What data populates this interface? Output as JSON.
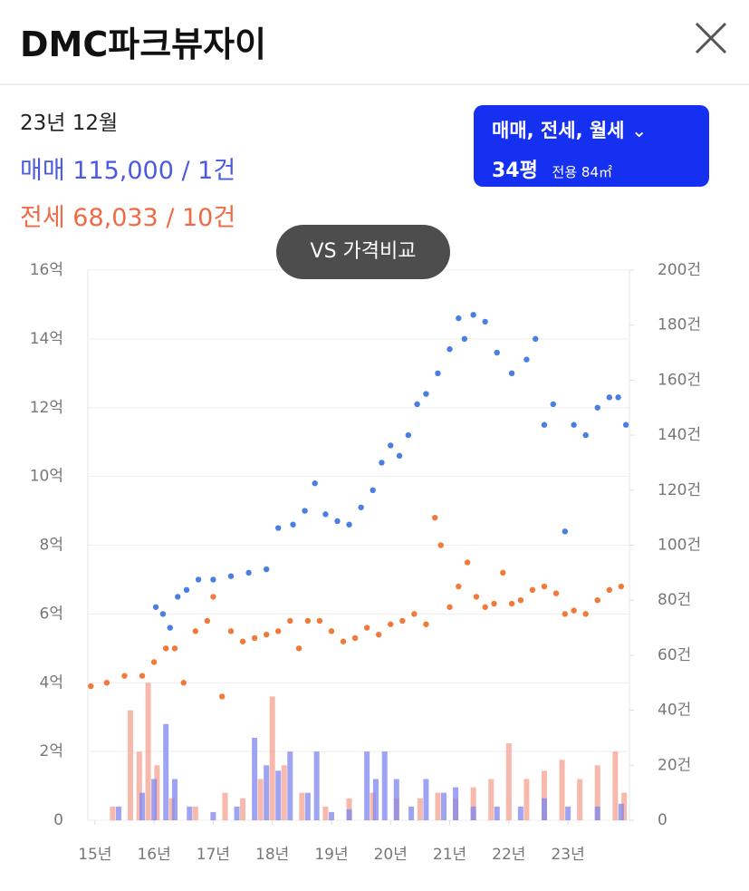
{
  "header": {
    "title": "DMC파크뷰자이"
  },
  "info": {
    "date": "23년 12월",
    "sale": "매매 115,000 / 1건",
    "jeonse": "전세 68,033 / 10건"
  },
  "filter": {
    "types": "매매, 전세, 월세",
    "size": "34평",
    "area": "전용 84㎡"
  },
  "compare": "VS 가격비교",
  "chart_data": {
    "type": "line",
    "grid": true,
    "xlim": [
      14.88,
      24.04
    ],
    "xticks": [
      {
        "value": 15,
        "label": "15년"
      },
      {
        "value": 16,
        "label": "16년"
      },
      {
        "value": 17,
        "label": "17년"
      },
      {
        "value": 18,
        "label": "18년"
      },
      {
        "value": 19,
        "label": "19년"
      },
      {
        "value": 20,
        "label": "20년"
      },
      {
        "value": 21,
        "label": "21년"
      },
      {
        "value": 22,
        "label": "22년"
      },
      {
        "value": 23,
        "label": "23년"
      }
    ],
    "ylim": [
      0,
      16
    ],
    "yticks": [
      0,
      {
        "value": 2,
        "label": "2억"
      },
      {
        "value": 4,
        "label": "4억"
      },
      {
        "value": 6,
        "label": "6억"
      },
      {
        "value": 8,
        "label": "8억"
      },
      {
        "value": 10,
        "label": "10억"
      },
      {
        "value": 12,
        "label": "12억"
      },
      {
        "value": 14,
        "label": "14억"
      },
      {
        "value": 16,
        "label": "16억"
      }
    ],
    "y2lim": [
      0,
      200
    ],
    "y2ticks": [
      0,
      {
        "value": 20,
        "label": "20건"
      },
      {
        "value": 40,
        "label": "40건"
      },
      {
        "value": 60,
        "label": "60건"
      },
      {
        "value": 80,
        "label": "80건"
      },
      {
        "value": 100,
        "label": "100건"
      },
      {
        "value": 120,
        "label": "120건"
      },
      {
        "value": 140,
        "label": "140건"
      },
      {
        "value": 160,
        "label": "160건"
      },
      {
        "value": 180,
        "label": "180건"
      },
      {
        "value": 200,
        "label": "200건"
      }
    ],
    "series": [
      {
        "kind": "bar",
        "axis": "y2",
        "color": "#f4a290",
        "x": [
          15.3,
          15.6,
          15.75,
          15.9,
          16.05,
          16.3,
          16.7,
          17.2,
          17.5,
          17.8,
          18.0,
          18.2,
          18.5,
          18.9,
          19.3,
          19.7,
          20.1,
          20.5,
          20.8,
          21.1,
          21.4,
          21.7,
          22.0,
          22.3,
          22.6,
          22.9,
          23.2,
          23.5,
          23.8,
          23.95
        ],
        "values": [
          5,
          40,
          25,
          50,
          20,
          8,
          5,
          10,
          8,
          15,
          45,
          20,
          10,
          5,
          8,
          10,
          8,
          8,
          10,
          8,
          12,
          15,
          28,
          15,
          18,
          22,
          15,
          20,
          25,
          10
        ]
      },
      {
        "kind": "bar",
        "axis": "y2",
        "color": "#7d86ee",
        "x": [
          15.4,
          15.8,
          16.0,
          16.2,
          16.35,
          16.6,
          17.0,
          17.4,
          17.7,
          17.9,
          18.1,
          18.3,
          18.6,
          18.75,
          19.0,
          19.3,
          19.6,
          19.75,
          19.9,
          20.1,
          20.35,
          20.6,
          20.9,
          21.1,
          21.4,
          21.8,
          22.2,
          22.6,
          23.0,
          23.5,
          23.9
        ],
        "values": [
          5,
          10,
          15,
          35,
          15,
          5,
          3,
          5,
          30,
          20,
          18,
          25,
          10,
          25,
          3,
          4,
          25,
          15,
          25,
          15,
          5,
          15,
          10,
          12,
          5,
          5,
          5,
          8,
          5,
          5,
          6
        ]
      },
      {
        "kind": "line",
        "color": "#f07a3a",
        "x": [
          14.93,
          15.2,
          15.5,
          15.8,
          16.0,
          16.2,
          16.35,
          16.5,
          16.7,
          16.9,
          17.0,
          17.15,
          17.3,
          17.5,
          17.7,
          17.9,
          18.1,
          18.3,
          18.45,
          18.6,
          18.8,
          19.0,
          19.2,
          19.4,
          19.6,
          19.8,
          20.0,
          20.2,
          20.4,
          20.6,
          20.75,
          20.85,
          21.0,
          21.15,
          21.3,
          21.45,
          21.6,
          21.75,
          21.9,
          22.05,
          22.2,
          22.4,
          22.6,
          22.8,
          22.95,
          23.1,
          23.3,
          23.5,
          23.7,
          23.9
        ],
        "values": [
          3.9,
          4.0,
          4.2,
          4.2,
          4.6,
          5.0,
          5.0,
          4.0,
          5.5,
          5.8,
          6.5,
          3.6,
          5.5,
          5.2,
          5.3,
          5.4,
          5.5,
          5.8,
          5.0,
          5.8,
          5.8,
          5.5,
          5.2,
          5.3,
          5.6,
          5.4,
          5.7,
          5.8,
          6.0,
          5.7,
          8.8,
          8.0,
          6.2,
          6.8,
          7.5,
          6.5,
          6.2,
          6.3,
          7.2,
          6.3,
          6.4,
          6.7,
          6.8,
          6.6,
          6.0,
          6.1,
          6.0,
          6.4,
          6.7,
          6.8
        ]
      },
      {
        "kind": "line",
        "color": "#4a7ee0",
        "x": [
          16.03,
          16.15,
          16.27,
          16.4,
          16.55,
          16.75,
          17.0,
          17.3,
          17.6,
          17.9,
          18.1,
          18.35,
          18.55,
          18.72,
          18.9,
          19.1,
          19.3,
          19.5,
          19.7,
          19.85,
          20.0,
          20.15,
          20.3,
          20.45,
          20.6,
          20.8,
          21.0,
          21.15,
          21.25,
          21.4,
          21.6,
          21.8,
          22.05,
          22.3,
          22.45,
          22.6,
          22.75,
          22.95,
          23.1,
          23.3,
          23.5,
          23.7,
          23.85,
          23.98
        ],
        "values": [
          6.2,
          6.0,
          5.6,
          6.5,
          6.7,
          7.0,
          7.0,
          7.1,
          7.2,
          7.3,
          8.5,
          8.6,
          9.0,
          9.8,
          8.9,
          8.7,
          8.6,
          9.1,
          9.6,
          10.4,
          10.9,
          10.6,
          11.2,
          12.1,
          12.4,
          13.0,
          13.7,
          14.6,
          14.0,
          14.7,
          14.5,
          13.6,
          13.0,
          13.4,
          14.0,
          11.5,
          12.1,
          8.4,
          11.5,
          11.2,
          12.0,
          12.3,
          12.3,
          11.5
        ]
      }
    ]
  }
}
